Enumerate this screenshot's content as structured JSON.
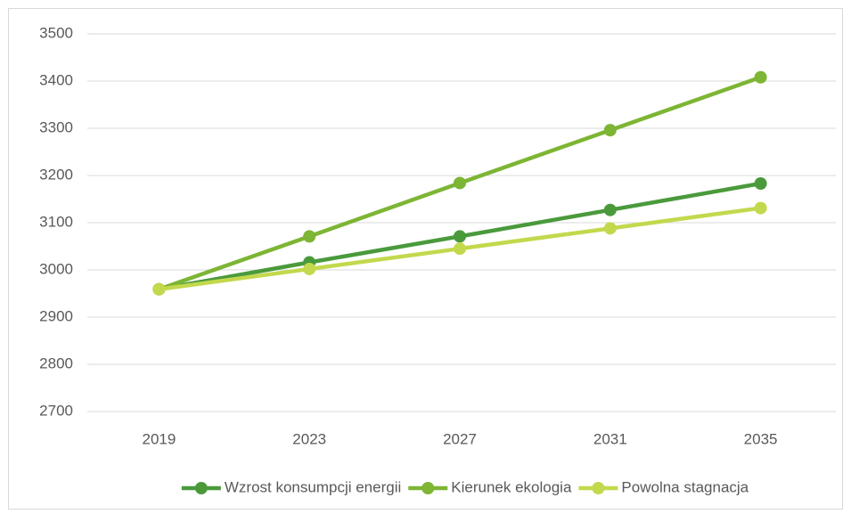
{
  "chart_data": {
    "type": "line",
    "categories": [
      "2019",
      "2023",
      "2027",
      "2031",
      "2035"
    ],
    "series": [
      {
        "name": "Wzrost konsumpcji energii",
        "color": "#4a9a3c",
        "values": [
          2959,
          3016,
          3071,
          3127,
          3183
        ]
      },
      {
        "name": "Kierunek ekologia",
        "color": "#7db534",
        "values": [
          2959,
          3071,
          3184,
          3296,
          3408
        ]
      },
      {
        "name": "Powolna stagnacja",
        "color": "#c3d84c",
        "values": [
          2959,
          3002,
          3045,
          3088,
          3131
        ]
      }
    ],
    "ylim": [
      2700,
      3500
    ],
    "yticks": [
      2700,
      2800,
      2900,
      3000,
      3100,
      3200,
      3300,
      3400,
      3500
    ],
    "grid": true,
    "legend": "bottom"
  }
}
